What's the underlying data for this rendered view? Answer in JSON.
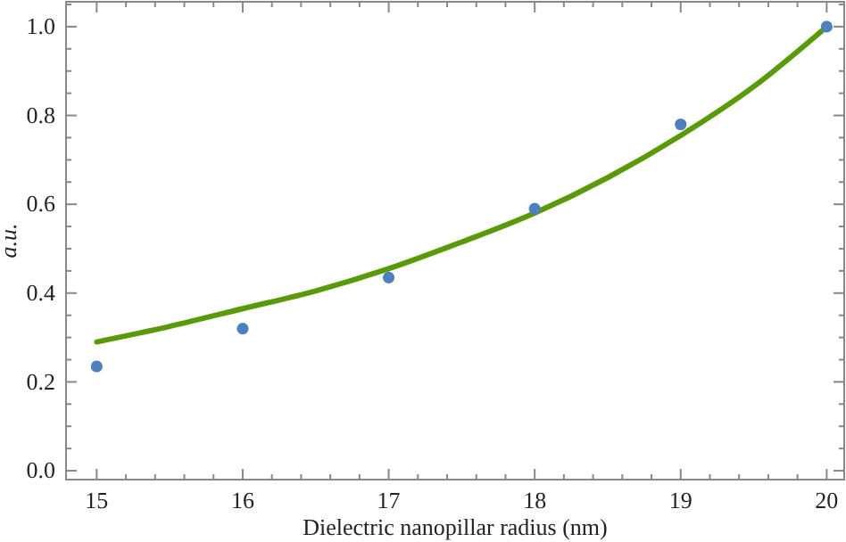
{
  "chart_data": {
    "type": "scatter",
    "xlabel": "Dielectric nanopillar radius (nm)",
    "ylabel": "a.u.",
    "xlim": [
      14.79,
      20.12
    ],
    "ylim": [
      -0.02,
      1.056
    ],
    "xticks": [
      15,
      {
        "value": 15.2,
        "label": null
      },
      {
        "value": 15.4,
        "label": null
      },
      {
        "value": 15.6,
        "label": null
      },
      {
        "value": 15.8,
        "label": null
      },
      16,
      {
        "value": 16.2,
        "label": null
      },
      {
        "value": 16.4,
        "label": null
      },
      {
        "value": 16.6,
        "label": null
      },
      {
        "value": 16.8,
        "label": null
      },
      17,
      {
        "value": 17.2,
        "label": null
      },
      {
        "value": 17.4,
        "label": null
      },
      {
        "value": 17.6,
        "label": null
      },
      {
        "value": 17.8,
        "label": null
      },
      18,
      {
        "value": 18.2,
        "label": null
      },
      {
        "value": 18.4,
        "label": null
      },
      {
        "value": 18.6,
        "label": null
      },
      {
        "value": 18.8,
        "label": null
      },
      19,
      {
        "value": 19.2,
        "label": null
      },
      {
        "value": 19.4,
        "label": null
      },
      {
        "value": 19.6,
        "label": null
      },
      {
        "value": 19.8,
        "label": null
      },
      20
    ],
    "yticks": [
      {
        "value": 0,
        "label": "0.0"
      },
      {
        "value": 0.05,
        "label": null
      },
      {
        "value": 0.1,
        "label": null
      },
      {
        "value": 0.15,
        "label": null
      },
      0.2,
      {
        "value": 0.25,
        "label": null
      },
      {
        "value": 0.3,
        "label": null
      },
      {
        "value": 0.35,
        "label": null
      },
      0.4,
      {
        "value": 0.45,
        "label": null
      },
      {
        "value": 0.5,
        "label": null
      },
      {
        "value": 0.55,
        "label": null
      },
      0.6,
      {
        "value": 0.65,
        "label": null
      },
      {
        "value": 0.7,
        "label": null
      },
      {
        "value": 0.75,
        "label": null
      },
      0.8,
      {
        "value": 0.85,
        "label": null
      },
      {
        "value": 0.9,
        "label": null
      },
      {
        "value": 0.95,
        "label": null
      },
      {
        "value": 1,
        "label": "1.0"
      },
      {
        "value": 1.05,
        "label": null
      }
    ],
    "marker": "circle",
    "series": [
      {
        "color": "#4f7fbf",
        "x": [
          15,
          16,
          17,
          18,
          19,
          20
        ],
        "values": [
          0.235,
          0.32,
          0.435,
          0.59,
          0.78,
          1.0
        ]
      },
      {
        "type": "line",
        "color": "#5a9a0a",
        "marker": "none",
        "x": [
          15,
          15.5,
          16,
          16.5,
          17,
          17.5,
          18,
          18.5,
          19,
          19.5,
          20
        ],
        "values": [
          0.29,
          0.325,
          0.365,
          0.405,
          0.455,
          0.515,
          0.58,
          0.66,
          0.755,
          0.865,
          1.0
        ]
      }
    ]
  }
}
